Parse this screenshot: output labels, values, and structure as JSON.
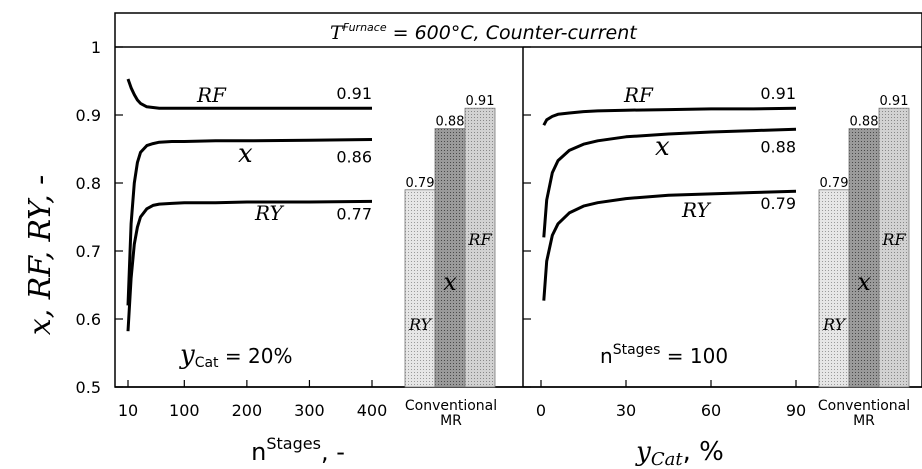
{
  "title_parts": {
    "T": "T",
    "sup": "Furnace",
    "rest": " = 600°C, Counter-current"
  },
  "colors": {
    "axis": "#000000",
    "bar_light": "#d9d9d9",
    "bar_mid": "#8a8a8a",
    "bar_light2": "#c8c8c8"
  },
  "chart_data": [
    {
      "type": "line",
      "panel": "left",
      "y_axis_label": "x, RF, RY, -",
      "xlabel_parts": {
        "base": "n",
        "sup": "Stages",
        "suffix": ", -"
      },
      "x_ticks": [
        10,
        100,
        200,
        300,
        400
      ],
      "y_ticks": [
        0.5,
        0.6,
        0.7,
        0.8,
        0.9,
        1
      ],
      "ylim": [
        0.5,
        1.0
      ],
      "xlim": [
        0,
        420
      ],
      "annotation_parts": {
        "base": "y",
        "sub": "Cat",
        "rest": " = 20%"
      },
      "series": [
        {
          "name": "RF",
          "end_label": "0.91",
          "x": [
            10,
            15,
            20,
            25,
            30,
            40,
            50,
            60,
            80,
            100,
            150,
            200,
            300,
            400
          ],
          "y": [
            0.953,
            0.94,
            0.93,
            0.922,
            0.917,
            0.912,
            0.911,
            0.91,
            0.91,
            0.91,
            0.91,
            0.91,
            0.91,
            0.91
          ]
        },
        {
          "name": "x",
          "end_label": "0.86",
          "x": [
            10,
            15,
            20,
            25,
            30,
            40,
            50,
            60,
            80,
            100,
            150,
            200,
            300,
            400
          ],
          "y": [
            0.62,
            0.74,
            0.8,
            0.83,
            0.845,
            0.855,
            0.858,
            0.86,
            0.861,
            0.861,
            0.862,
            0.862,
            0.863,
            0.864
          ]
        },
        {
          "name": "RY",
          "end_label": "0.77",
          "x": [
            10,
            15,
            20,
            25,
            30,
            40,
            50,
            60,
            80,
            100,
            150,
            200,
            300,
            400
          ],
          "y": [
            0.582,
            0.66,
            0.71,
            0.735,
            0.75,
            0.762,
            0.767,
            0.769,
            0.77,
            0.771,
            0.771,
            0.772,
            0.772,
            0.773
          ]
        }
      ]
    },
    {
      "type": "bar",
      "panel": "left-conventional",
      "category_label": [
        "Conventional",
        "MR"
      ],
      "bars": [
        {
          "name": "RY",
          "value": 0.79,
          "label": "0.79"
        },
        {
          "name": "x",
          "value": 0.88,
          "label": "0.88"
        },
        {
          "name": "RF",
          "value": 0.91,
          "label": "0.91"
        }
      ]
    },
    {
      "type": "line",
      "panel": "right",
      "xlabel_parts": {
        "base": "y",
        "sub": "Cat",
        "suffix": ", %"
      },
      "x_ticks": [
        0,
        30,
        60,
        90
      ],
      "ylim": [
        0.5,
        1.0
      ],
      "xlim": [
        -2,
        95
      ],
      "annotation_parts": {
        "base": "n",
        "sup": "Stages",
        "rest": " = 100"
      },
      "series": [
        {
          "name": "RF",
          "end_label": "0.91",
          "x": [
            1,
            2,
            4,
            6,
            10,
            15,
            20,
            30,
            45,
            60,
            75,
            90
          ],
          "y": [
            0.885,
            0.893,
            0.898,
            0.901,
            0.903,
            0.905,
            0.906,
            0.907,
            0.908,
            0.909,
            0.909,
            0.91
          ]
        },
        {
          "name": "x",
          "end_label": "0.88",
          "x": [
            1,
            2,
            4,
            6,
            10,
            15,
            20,
            30,
            45,
            60,
            75,
            90
          ],
          "y": [
            0.72,
            0.775,
            0.815,
            0.833,
            0.848,
            0.857,
            0.862,
            0.868,
            0.872,
            0.875,
            0.877,
            0.879
          ]
        },
        {
          "name": "RY",
          "end_label": "0.79",
          "x": [
            1,
            2,
            4,
            6,
            10,
            15,
            20,
            30,
            45,
            60,
            75,
            90
          ],
          "y": [
            0.627,
            0.685,
            0.723,
            0.74,
            0.756,
            0.766,
            0.771,
            0.777,
            0.782,
            0.784,
            0.786,
            0.788
          ]
        }
      ]
    },
    {
      "type": "bar",
      "panel": "right-conventional",
      "category_label": [
        "Conventional",
        "MR"
      ],
      "bars": [
        {
          "name": "RY",
          "value": 0.79,
          "label": "0.79"
        },
        {
          "name": "x",
          "value": 0.88,
          "label": "0.88"
        },
        {
          "name": "RF",
          "value": 0.91,
          "label": "0.91"
        }
      ]
    }
  ]
}
